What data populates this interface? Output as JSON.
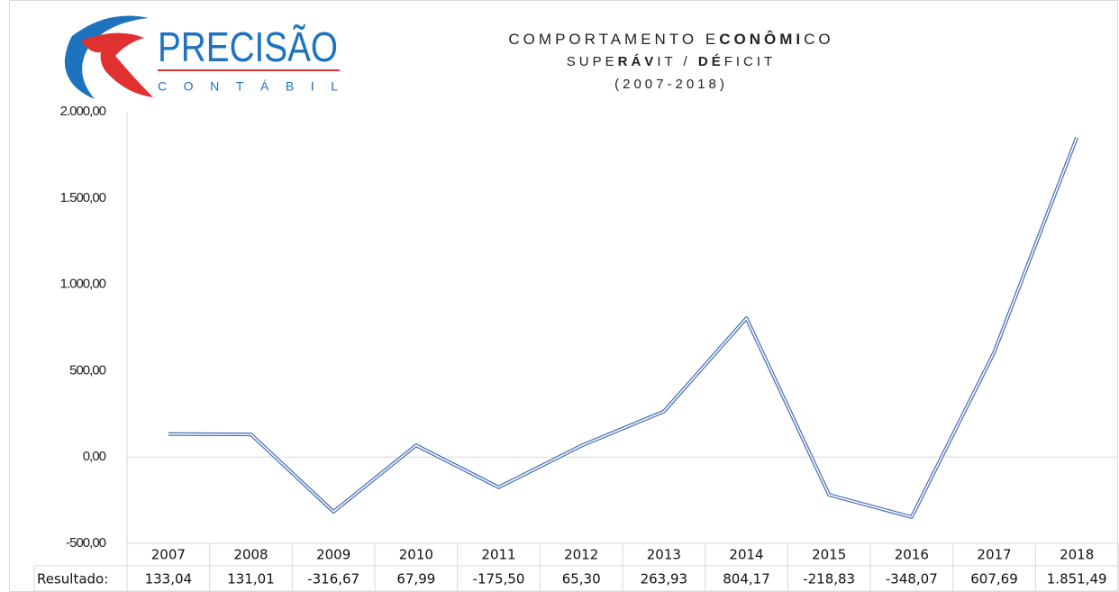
{
  "chart_data": {
    "type": "line",
    "logo": {
      "name": "PRECISÃO",
      "tagline": "CONTÁBIL"
    },
    "title": [
      {
        "text": "COMPORTAMENTO E",
        "bold": false
      },
      {
        "text": "CONÔMI",
        "bold": true
      },
      {
        "text": "CO",
        "bold": false
      }
    ],
    "subtitle": [
      {
        "text": "SUPE",
        "bold": false
      },
      {
        "text": "RÁV",
        "bold": true
      },
      {
        "text": "IT / ",
        "bold": false
      },
      {
        "text": "DÉ",
        "bold": true
      },
      {
        "text": "FICIT",
        "bold": false
      }
    ],
    "period": "(2007-2018)",
    "categories": [
      "2007",
      "2008",
      "2009",
      "2010",
      "2011",
      "2012",
      "2013",
      "2014",
      "2015",
      "2016",
      "2017",
      "2018"
    ],
    "series": [
      {
        "name": "Resultado:",
        "color": "#4a6fb5",
        "values": [
          133.04,
          131.01,
          -316.67,
          67.99,
          -175.5,
          65.3,
          263.93,
          804.17,
          -218.83,
          -348.07,
          607.69,
          1851.49
        ],
        "value_labels": [
          "133,04",
          "131,01",
          "-316,67",
          "67,99",
          "-175,50",
          "65,30",
          "263,93",
          "804,17",
          "-218,83",
          "-348,07",
          "607,69",
          "1.851,49"
        ]
      }
    ],
    "ylim": [
      -500,
      2000
    ],
    "yticks": [
      {
        "value": -500,
        "label": "-500,00",
        "color": "#ff0000"
      },
      {
        "value": 0,
        "label": "0,00"
      },
      {
        "value": 500,
        "label": "500,00"
      },
      {
        "value": 1000,
        "label": "1.000,00"
      },
      {
        "value": 1500,
        "label": "1.500,00"
      },
      {
        "value": 2000,
        "label": "2.000,00"
      }
    ]
  }
}
